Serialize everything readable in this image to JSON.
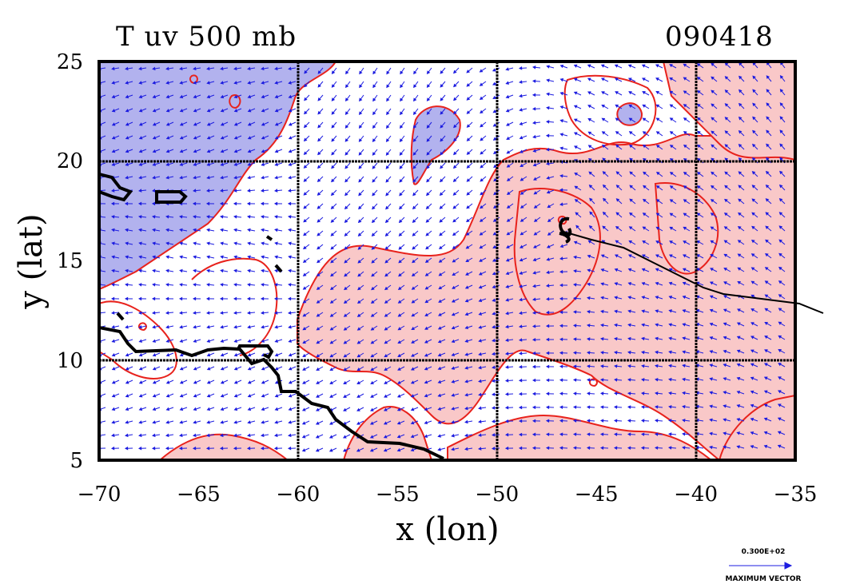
{
  "header": {
    "title": "T uv 500 mb",
    "date_code": "090418"
  },
  "axes": {
    "xlabel": "x (lon)",
    "ylabel": "y (lat)",
    "x_ticks": [
      "−70",
      "−65",
      "−60",
      "−55",
      "−50",
      "−45",
      "−40",
      "−35"
    ],
    "y_ticks": [
      "25",
      "20",
      "15",
      "10",
      "5"
    ],
    "xlim": [
      -70,
      -35
    ],
    "ylim": [
      5,
      25
    ]
  },
  "legend": {
    "vector_value": "0.300E+02",
    "vector_label": "MAXIMUM VECTOR"
  },
  "colors": {
    "warm_fill": "#f9c8c8",
    "cold_fill": "#b2b2ee",
    "contour": "#e8221c",
    "vector": "#1c1ce0",
    "coast": "#000000"
  },
  "storm_track": {
    "symbol": "tropical-cyclone-symbol",
    "lon": -46.5,
    "lat": 16.5
  }
}
